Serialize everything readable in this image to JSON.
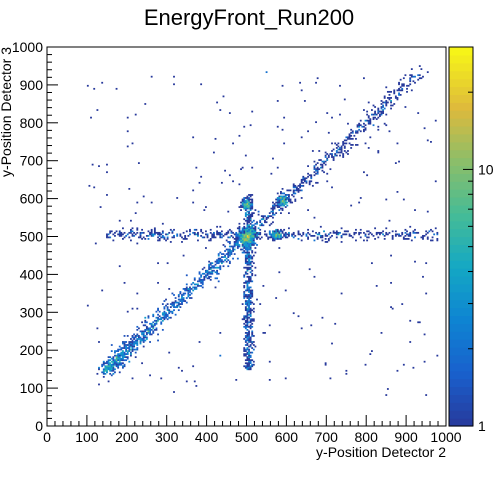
{
  "chart_data": {
    "type": "heatmap",
    "title": "EnergyFront_Run200",
    "xlabel": "y-Position Detector 2",
    "ylabel": "y-Position Detector 3",
    "xlim": [
      0,
      1000
    ],
    "ylim": [
      0,
      1000
    ],
    "x_ticks": [
      0,
      100,
      200,
      300,
      400,
      500,
      600,
      700,
      800,
      900,
      1000
    ],
    "y_ticks": [
      0,
      100,
      200,
      300,
      400,
      500,
      600,
      700,
      800,
      900,
      1000
    ],
    "x_tick_labels": [
      "0",
      "100",
      "200",
      "300",
      "400",
      "500",
      "600",
      "700",
      "800",
      "900",
      "1000"
    ],
    "y_tick_labels": [
      "0",
      "100",
      "200",
      "300",
      "400",
      "500",
      "600",
      "700",
      "800",
      "900",
      "1000"
    ],
    "colorbar": {
      "scale": "log",
      "range": [
        1,
        30
      ],
      "labels": [
        {
          "value": 1,
          "text": "1"
        },
        {
          "value": 10,
          "text": "10"
        }
      ]
    },
    "grid": false,
    "features": [
      {
        "kind": "diagonal-band",
        "from": [
          150,
          150
        ],
        "to": [
          930,
          930
        ],
        "density": "high-low"
      },
      {
        "kind": "horizontal-band",
        "y": 505,
        "x_range": [
          150,
          980
        ]
      },
      {
        "kind": "vertical-band",
        "x": 505,
        "y_range": [
          150,
          610
        ]
      },
      {
        "kind": "cluster",
        "x": 500,
        "y": 500,
        "radius": 20,
        "peak": 30
      },
      {
        "kind": "cluster",
        "x": 500,
        "y": 585,
        "radius": 12,
        "peak": 6
      },
      {
        "kind": "cluster",
        "x": 590,
        "y": 595,
        "radius": 14,
        "peak": 6
      },
      {
        "kind": "cluster",
        "x": 575,
        "y": 505,
        "radius": 10,
        "peak": 5
      }
    ]
  }
}
